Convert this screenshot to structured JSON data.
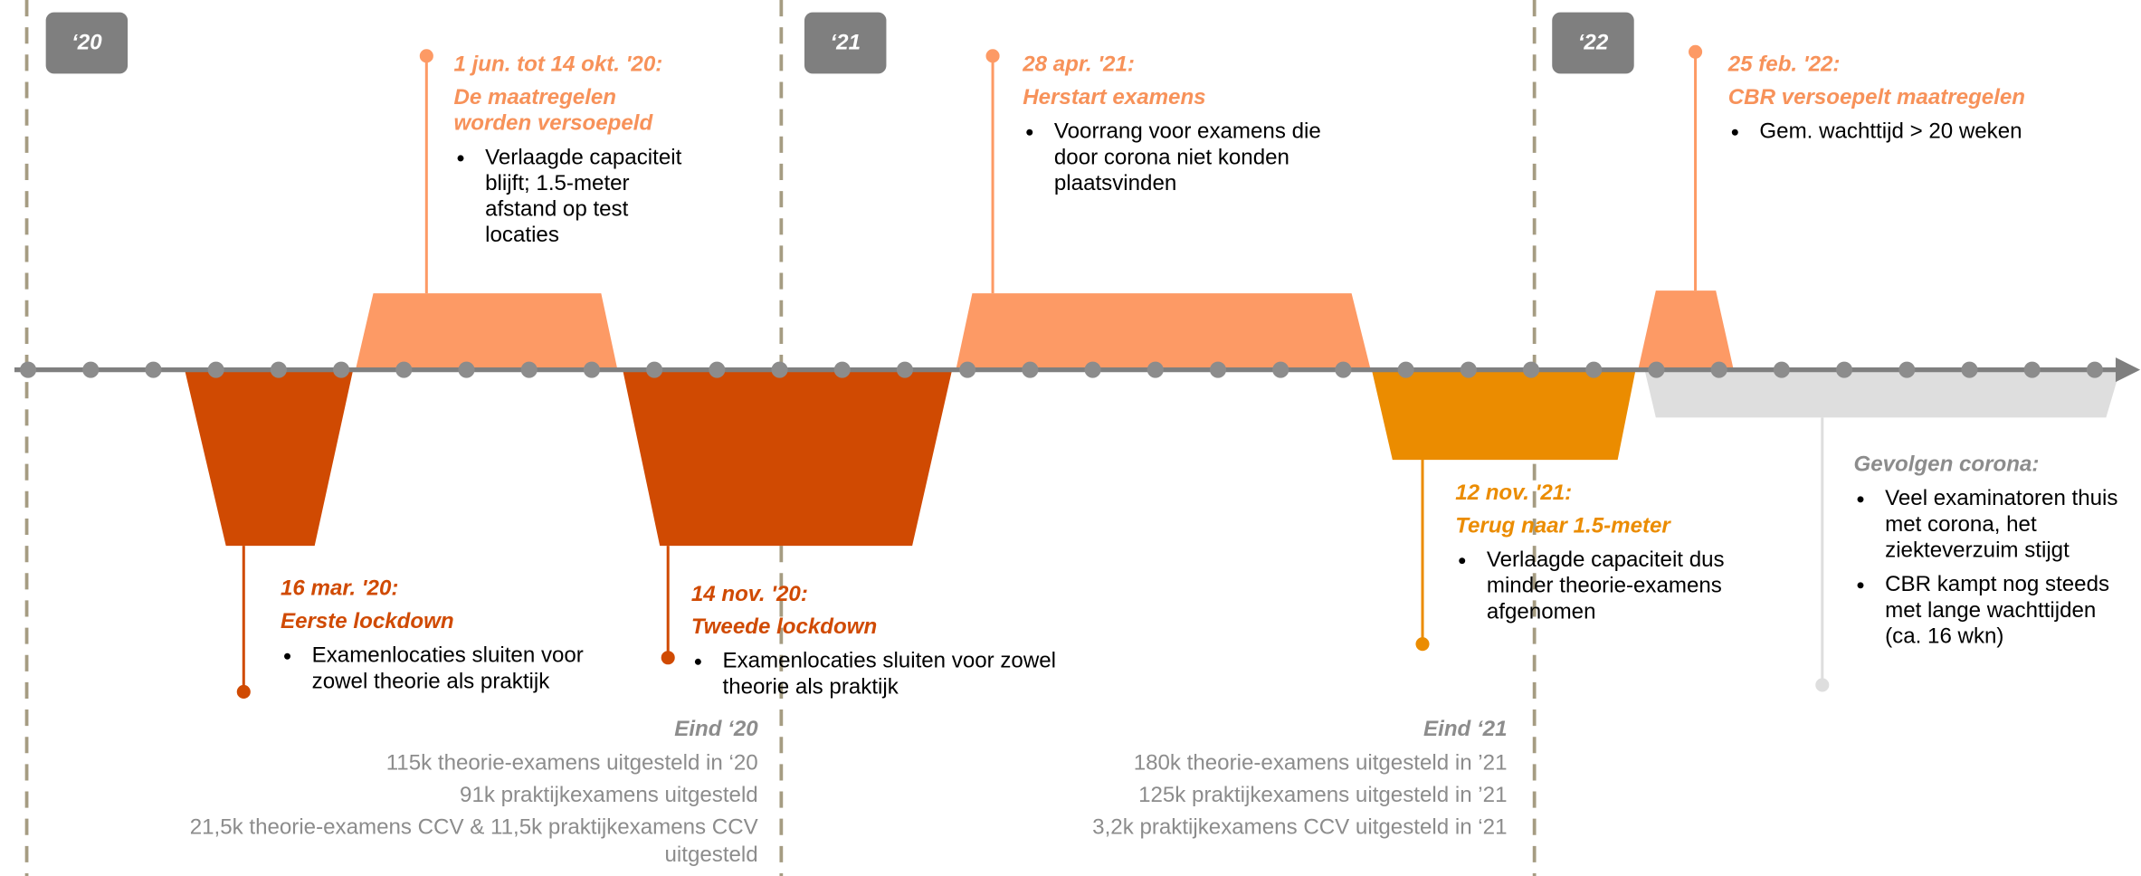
{
  "years": [
    "‘20",
    "‘21",
    "‘22"
  ],
  "events": [
    {
      "date": "16 mar. '20:",
      "title": [
        "Eerste lockdown"
      ],
      "bullets": [
        [
          "Examenlocaties sluiten voor",
          "zowel theorie als praktijk"
        ]
      ]
    },
    {
      "date": "1 jun. tot 14 okt. '20:",
      "title": [
        "De maatregelen",
        "worden versoepeld"
      ],
      "bullets": [
        [
          "Verlaagde capaciteit",
          "blijft; 1.5-meter",
          "afstand op test",
          "locaties"
        ]
      ]
    },
    {
      "date": "14 nov. '20:",
      "title": [
        "Tweede lockdown"
      ],
      "bullets": [
        [
          "Examenlocaties sluiten voor zowel",
          "theorie als praktijk"
        ]
      ]
    },
    {
      "date": "28 apr. '21:",
      "title": [
        "Herstart examens"
      ],
      "bullets": [
        [
          "Voorrang voor examens die",
          "door corona niet konden",
          "plaatsvinden"
        ]
      ]
    },
    {
      "date": "12 nov. '21:",
      "title": [
        "Terug naar 1.5-meter"
      ],
      "bullets": [
        [
          "Verlaagde capaciteit dus",
          "minder theorie-examens",
          "afgenomen"
        ]
      ]
    },
    {
      "date": "25 feb. '22:",
      "title": [
        "CBR versoepelt maatregelen"
      ],
      "bullets": [
        [
          "Gem. wachttijd > 20 weken"
        ]
      ]
    }
  ],
  "impact": {
    "title": "Gevolgen corona:",
    "bullets": [
      [
        "Veel examinatoren thuis",
        "met corona, het",
        "ziekteverzuim stijgt"
      ],
      [
        "CBR kampt nog steeds",
        "met lange wachttijden",
        "(ca. 16 wkn)"
      ]
    ]
  },
  "summaries": [
    {
      "title": "Eind ‘20",
      "lines": [
        "115k theorie-examens uitgesteld in ‘20",
        "91k praktijkexamens uitgesteld",
        "21,5k theorie-examens CCV & 11,5k praktijkexamens CCV",
        "uitgesteld"
      ]
    },
    {
      "title": "Eind ‘21",
      "lines": [
        "180k theorie-examens uitgesteld in ’21",
        "125k praktijkexamens uitgesteld in ’21",
        "3,2k praktijkexamens CCV uitgesteld in ‘21"
      ]
    }
  ]
}
